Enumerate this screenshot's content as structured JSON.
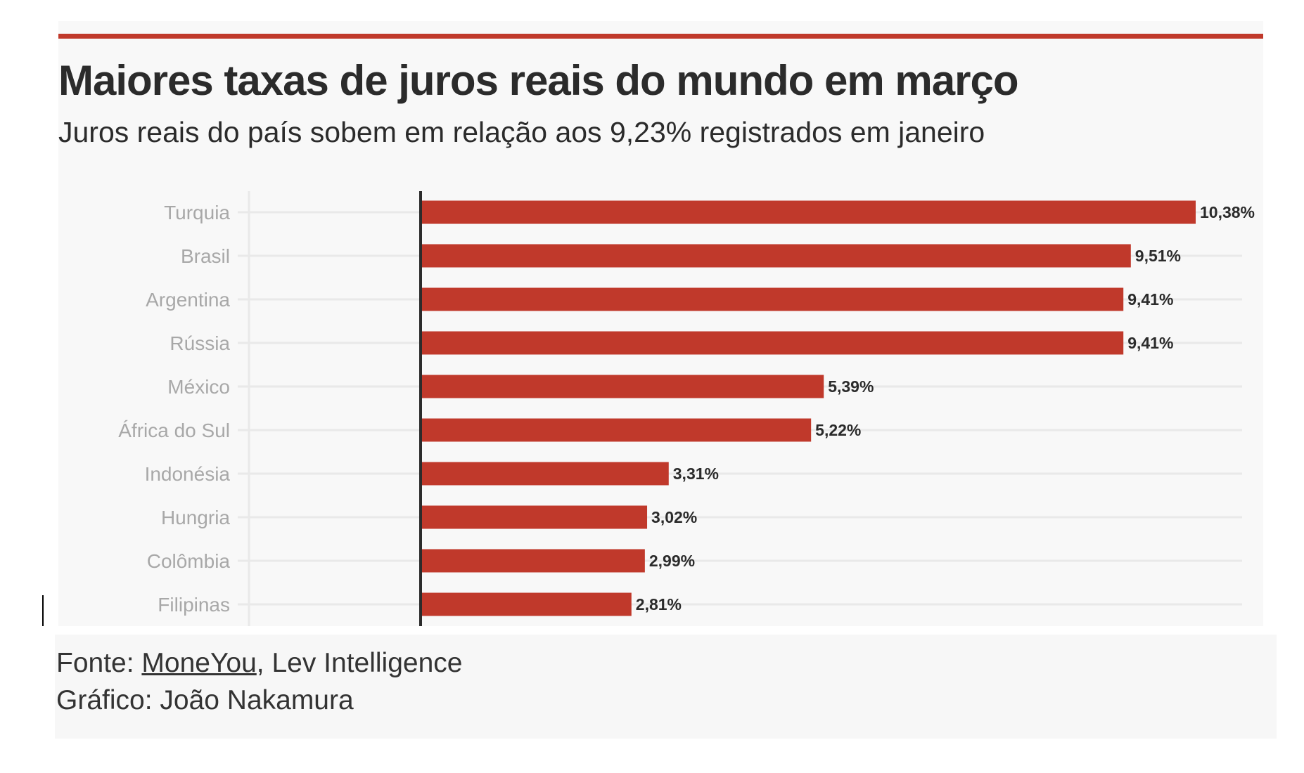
{
  "colors": {
    "accent": "#c0392b",
    "bar": "#c0392b",
    "axis": "#2b2b2b",
    "grid": "#e9e9e9",
    "label": "#a8a8a8",
    "text": "#2b2b2b"
  },
  "title": "Maiores taxas de juros reais do mundo em março",
  "subtitle": "Juros reais do país sobem em relação aos 9,23% registrados em janeiro",
  "chart_data": {
    "type": "bar",
    "orientation": "horizontal",
    "title": "Maiores taxas de juros reais do mundo em março",
    "subtitle": "Juros reais do país sobem em relação aos 9,23% registrados em janeiro",
    "categories": [
      "Turquia",
      "Brasil",
      "Argentina",
      "Rússia",
      "México",
      "África do Sul",
      "Indonésia",
      "Hungria",
      "Colômbia",
      "Filipinas"
    ],
    "values": [
      10.38,
      9.51,
      9.41,
      9.41,
      5.39,
      5.22,
      3.31,
      3.02,
      2.99,
      2.81
    ],
    "value_labels": [
      "10,38%",
      "9,51%",
      "9,41%",
      "9,41%",
      "5,39%",
      "5,22%",
      "3,31%",
      "3,02%",
      "2,99%",
      "2,81%"
    ],
    "xlabel": "",
    "ylabel": "",
    "xlim": [
      0,
      10.38
    ],
    "grid": true,
    "legend": "none"
  },
  "footer": {
    "source_prefix": "Fonte: ",
    "source_link": "MoneYou",
    "source_rest": ", Lev Intelligence",
    "credit": "Gráfico: João Nakamura"
  }
}
